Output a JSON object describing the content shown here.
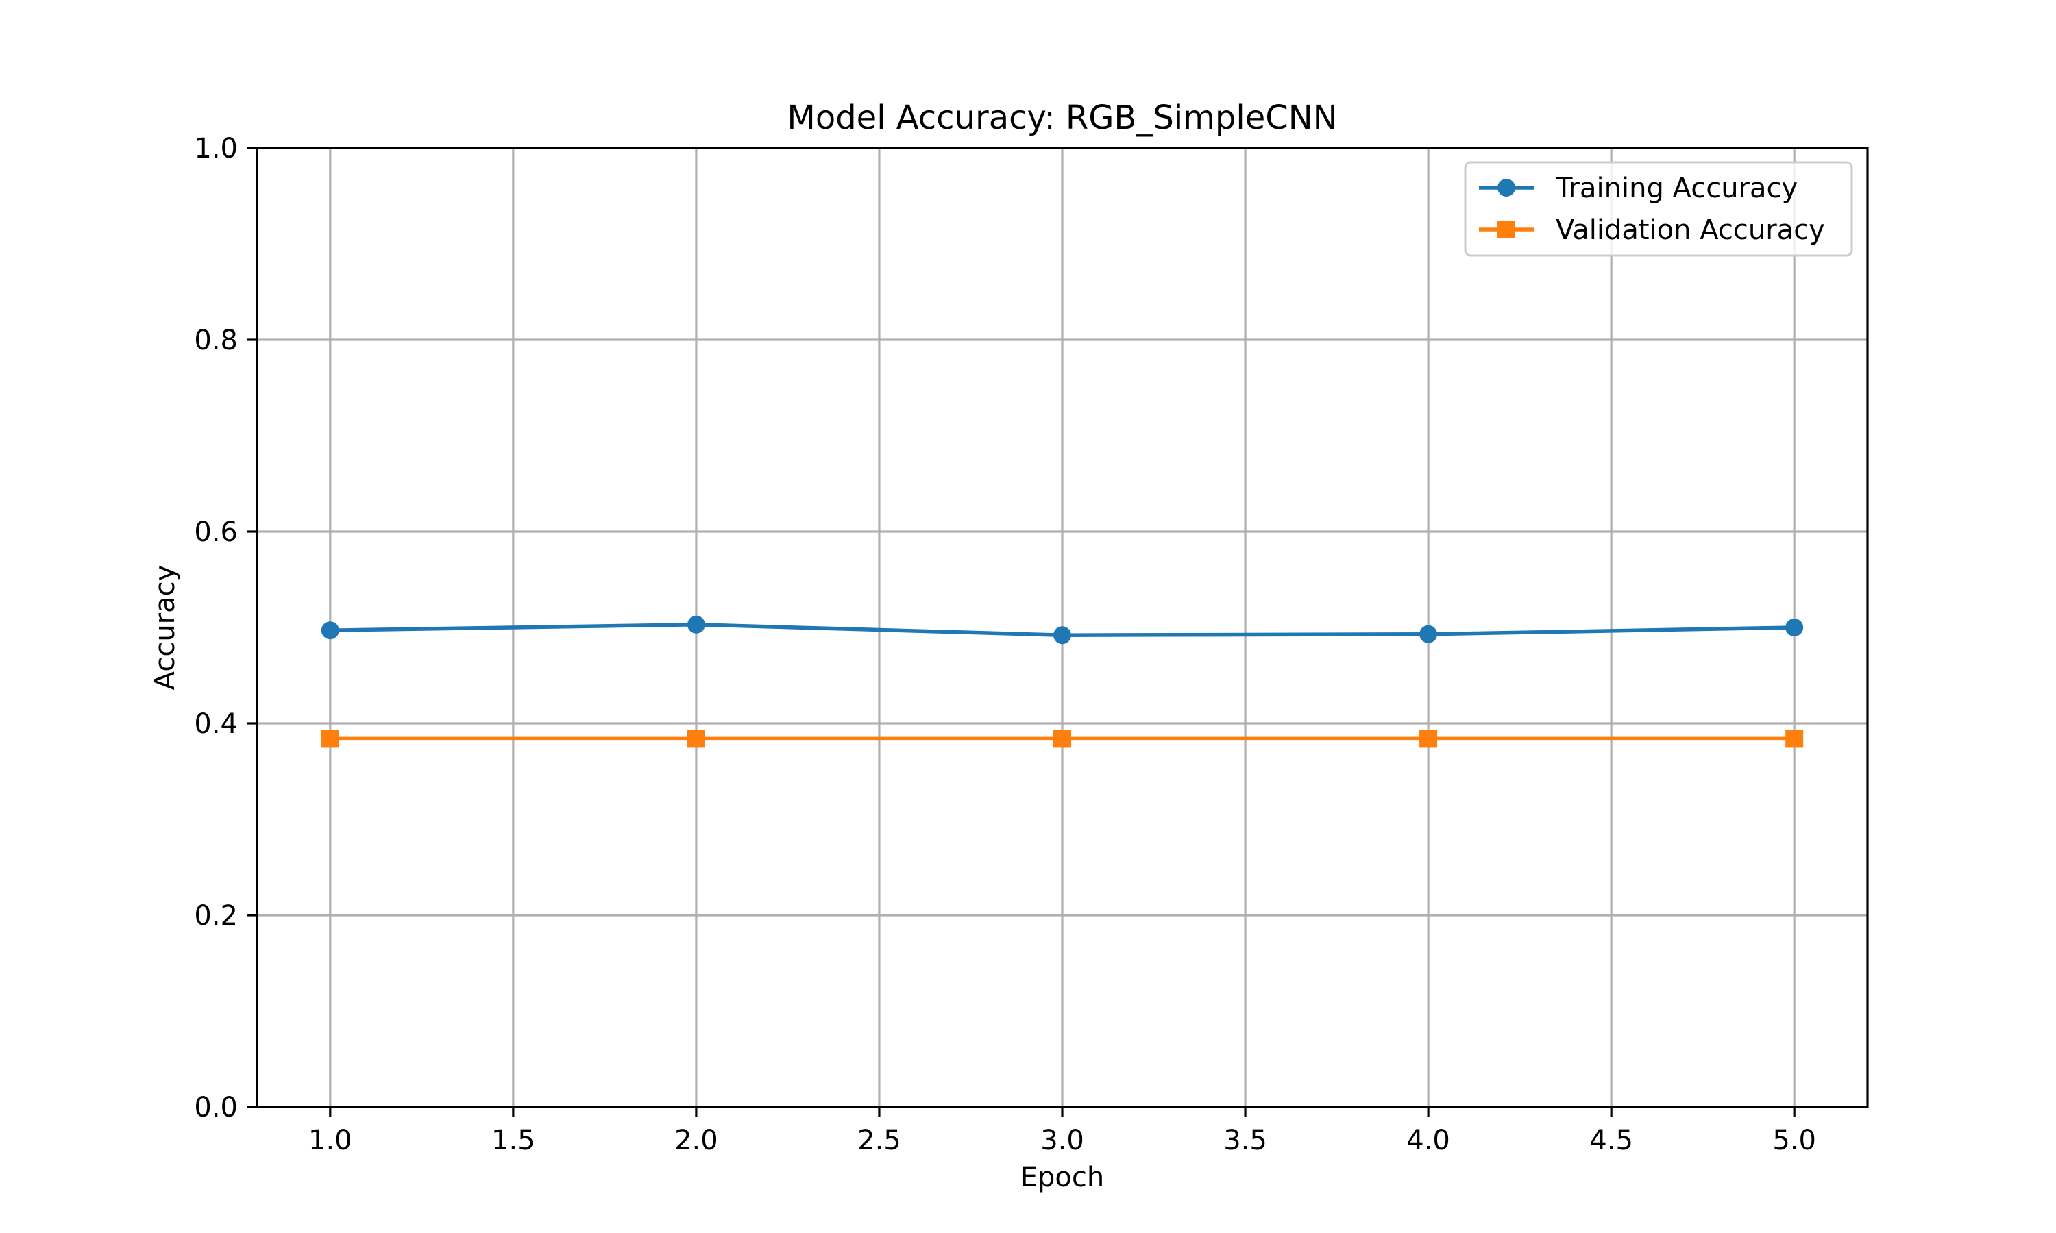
{
  "chart_data": {
    "type": "line",
    "title": "Model Accuracy: RGB_SimpleCNN",
    "xlabel": "Epoch",
    "ylabel": "Accuracy",
    "x": [
      1,
      2,
      3,
      4,
      5
    ],
    "xlim": [
      0.8,
      5.2
    ],
    "ylim": [
      0.0,
      1.0
    ],
    "xticks": [
      "1.0",
      "1.5",
      "2.0",
      "2.5",
      "3.0",
      "3.5",
      "4.0",
      "4.5",
      "5.0"
    ],
    "yticks": [
      "0.0",
      "0.2",
      "0.4",
      "0.6",
      "0.8",
      "1.0"
    ],
    "grid": true,
    "legend_position": "top-right",
    "series": [
      {
        "name": "Training Accuracy",
        "color": "#1f77b4",
        "marker": "circle",
        "values": [
          0.497,
          0.503,
          0.492,
          0.493,
          0.5
        ]
      },
      {
        "name": "Validation Accuracy",
        "color": "#ff7f0e",
        "marker": "square",
        "values": [
          0.384,
          0.384,
          0.384,
          0.384,
          0.384
        ]
      }
    ]
  }
}
